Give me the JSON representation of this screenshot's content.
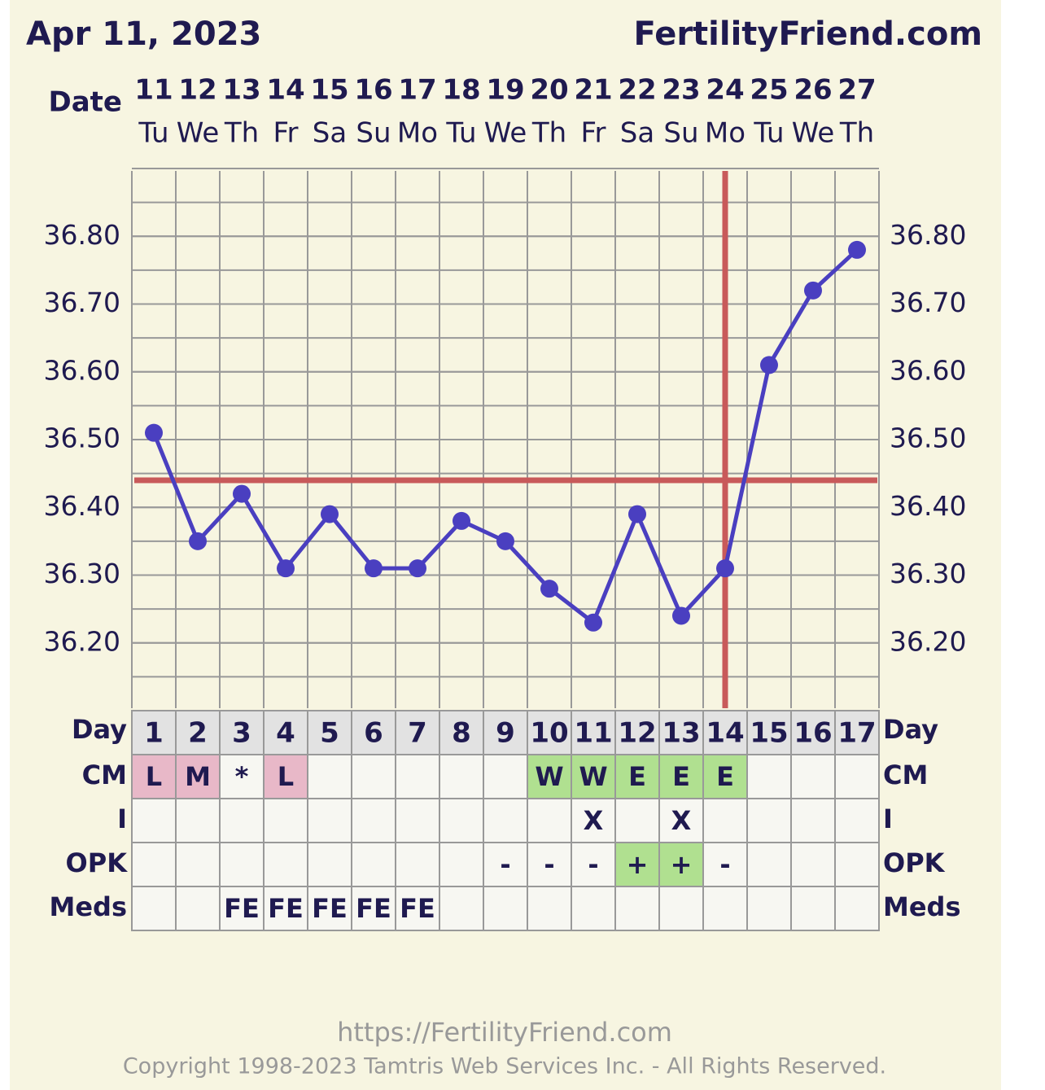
{
  "header": {
    "date": "Apr 11, 2023",
    "site": "FertilityFriend.com"
  },
  "chart_data": {
    "type": "line",
    "x_label": "Date",
    "categories": [
      "11",
      "12",
      "13",
      "14",
      "15",
      "16",
      "17",
      "18",
      "19",
      "20",
      "21",
      "22",
      "23",
      "24",
      "25",
      "26",
      "27"
    ],
    "weekdays": [
      "Tu",
      "We",
      "Th",
      "Fr",
      "Sa",
      "Su",
      "Mo",
      "Tu",
      "We",
      "Th",
      "Fr",
      "Sa",
      "Su",
      "Mo",
      "Tu",
      "We",
      "Th"
    ],
    "values": [
      36.51,
      36.35,
      36.42,
      36.31,
      36.39,
      36.31,
      36.31,
      36.38,
      36.35,
      36.28,
      36.23,
      36.39,
      36.24,
      36.31,
      36.61,
      36.72,
      36.78
    ],
    "color": "#4a3fc0",
    "coverline": 36.44,
    "ovulation_day": 14,
    "marker_color": "#c85a5a",
    "ylim": [
      36.1,
      36.9
    ],
    "yticks": [
      {
        "value": 36.2,
        "label": "36.20"
      },
      {
        "value": 36.3,
        "label": "36.30"
      },
      {
        "value": 36.4,
        "label": "36.40"
      },
      {
        "value": 36.5,
        "label": "36.50"
      },
      {
        "value": 36.6,
        "label": "36.60"
      },
      {
        "value": 36.7,
        "label": "36.70"
      },
      {
        "value": 36.8,
        "label": "36.80"
      }
    ],
    "grid": true
  },
  "table": {
    "day_label": "Day",
    "days": [
      1,
      2,
      3,
      4,
      5,
      6,
      7,
      8,
      9,
      10,
      11,
      12,
      13,
      14,
      15,
      16,
      17
    ],
    "rows": [
      {
        "label": "CM",
        "cells": [
          "L",
          "M",
          "*",
          "L",
          null,
          null,
          null,
          null,
          null,
          "W",
          "W",
          "E",
          "E",
          "E",
          null,
          null,
          null
        ],
        "colors": [
          "#e8b8c8",
          "#e8b8c8",
          null,
          "#e8b8c8",
          null,
          null,
          null,
          null,
          null,
          "#b0e090",
          "#b0e090",
          "#b0e090",
          "#b0e090",
          "#b0e090",
          null,
          null,
          null
        ]
      },
      {
        "label": "I",
        "cells": [
          null,
          null,
          null,
          null,
          null,
          null,
          null,
          null,
          null,
          null,
          "X",
          null,
          "X",
          null,
          null,
          null,
          null
        ]
      },
      {
        "label": "OPK",
        "cells": [
          null,
          null,
          null,
          null,
          null,
          null,
          null,
          null,
          "-",
          "-",
          "-",
          "+",
          "+",
          "-",
          null,
          null,
          null
        ],
        "colors": [
          null,
          null,
          null,
          null,
          null,
          null,
          null,
          null,
          null,
          null,
          null,
          "#b0e090",
          "#b0e090",
          null,
          null,
          null,
          null
        ]
      },
      {
        "label": "Meds",
        "cells": [
          null,
          null,
          "FE",
          "FE",
          "FE",
          "FE",
          "FE",
          null,
          null,
          null,
          null,
          null,
          null,
          null,
          null,
          null,
          null
        ]
      }
    ]
  },
  "footer": {
    "url": "https://FertilityFriend.com",
    "copyright": "Copyright 1998-2023 Tamtris Web Services Inc. - All Rights Reserved."
  }
}
